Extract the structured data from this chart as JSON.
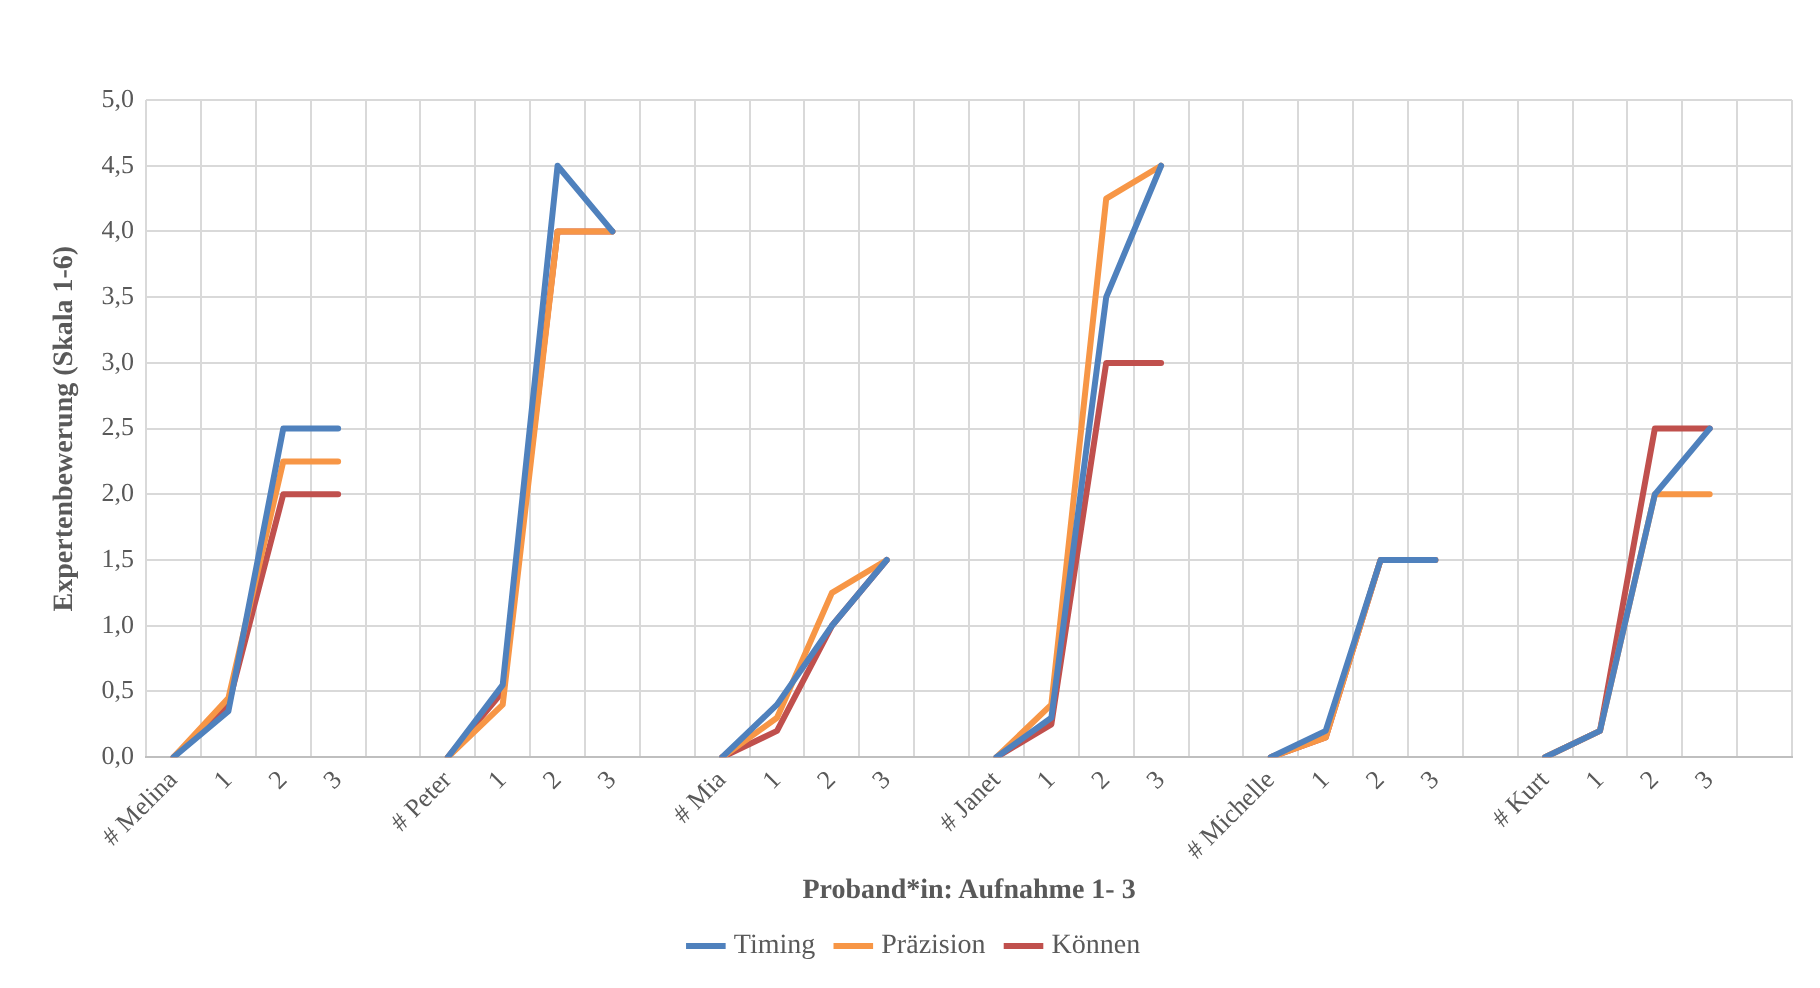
{
  "chart_data": {
    "type": "line",
    "xlabel": "Proband*in: Aufnahme 1- 3",
    "ylabel": "Expertenbewerung (Skala 1-6)",
    "categories": [
      "# Melina",
      "1",
      "2",
      "3",
      null,
      "# Peter",
      "1",
      "2",
      "3",
      null,
      "# Mia",
      "1",
      "2",
      "3",
      null,
      "# Janet",
      "1",
      "2",
      "3",
      null,
      "# Michelle",
      "1",
      "2",
      "3",
      null,
      "# Kurt",
      "1",
      "2",
      "3",
      null
    ],
    "series": [
      {
        "name": "Timing",
        "color": "#4f81bd",
        "values": [
          0,
          0.35,
          2.5,
          2.5,
          null,
          0,
          0.55,
          4.5,
          4.0,
          null,
          0,
          0.4,
          1.0,
          1.5,
          null,
          0,
          0.3,
          3.5,
          4.5,
          null,
          0,
          0.2,
          1.5,
          1.5,
          null,
          0,
          0.2,
          2.0,
          2.5,
          null
        ]
      },
      {
        "name": "Präzision",
        "color": "#f79646",
        "values": [
          0,
          0.45,
          2.25,
          2.25,
          null,
          0,
          0.4,
          4.0,
          4.0,
          null,
          0,
          0.3,
          1.25,
          1.5,
          null,
          0,
          0.4,
          4.25,
          4.5,
          null,
          0,
          0.15,
          1.5,
          1.5,
          null,
          0,
          0.2,
          2.0,
          2.0,
          null
        ]
      },
      {
        "name": "Können",
        "color": "#c0504d",
        "values": [
          0,
          0.4,
          2.0,
          2.0,
          null,
          0,
          0.5,
          4.0,
          4.0,
          null,
          0,
          0.2,
          1.0,
          1.5,
          null,
          0,
          0.25,
          3.0,
          3.0,
          null,
          0,
          0.15,
          1.5,
          1.5,
          null,
          0,
          0.2,
          2.5,
          2.5,
          null
        ]
      }
    ],
    "ylim": [
      0,
      5
    ],
    "yticks": [
      {
        "value": 0,
        "label": "0,0"
      },
      {
        "value": 0.5,
        "label": "0,5"
      },
      {
        "value": 1,
        "label": "1,0"
      },
      {
        "value": 1.5,
        "label": "1,5"
      },
      {
        "value": 2,
        "label": "2,0"
      },
      {
        "value": 2.5,
        "label": "2,5"
      },
      {
        "value": 3,
        "label": "3,0"
      },
      {
        "value": 3.5,
        "label": "3,5"
      },
      {
        "value": 4,
        "label": "4,0"
      },
      {
        "value": 4.5,
        "label": "4,5"
      },
      {
        "value": 5,
        "label": "5,0"
      }
    ],
    "grid": true,
    "legend": "bottom",
    "marker": "none",
    "line_style": "solid"
  }
}
